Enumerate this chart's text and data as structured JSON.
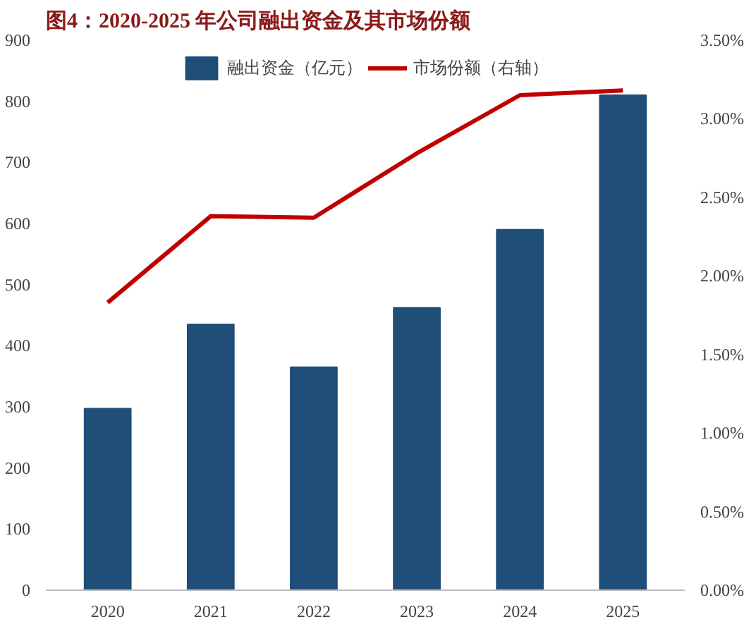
{
  "chart_data": {
    "type": "bar",
    "title": "图4：2020-2025 年公司融出资金及其市场份额",
    "categories": [
      "2020",
      "2021",
      "2022",
      "2023",
      "2024",
      "2025"
    ],
    "series": [
      {
        "name": "融出资金（亿元）",
        "color": "#1f4e79",
        "values": [
          297,
          435,
          365,
          462,
          590,
          810
        ]
      },
      {
        "name": "市场份额（右轴）",
        "type": "line",
        "axis": "y2",
        "color": "#c00000",
        "values": [
          1.83,
          2.38,
          2.37,
          2.78,
          3.15,
          3.18
        ]
      }
    ],
    "ylim": [
      0,
      900
    ],
    "yticks": [
      0,
      100,
      200,
      300,
      400,
      500,
      600,
      700,
      800,
      900
    ],
    "y2lim": [
      0,
      3.5
    ],
    "y2ticks": [
      {
        "value": 0,
        "label": "0.00%"
      },
      {
        "value": 0.5,
        "label": "0.50%"
      },
      {
        "value": 1,
        "label": "1.00%"
      },
      {
        "value": 1.5,
        "label": "1.50%"
      },
      {
        "value": 2,
        "label": "2.00%"
      },
      {
        "value": 2.5,
        "label": "2.50%"
      },
      {
        "value": 3,
        "label": "3.00%"
      },
      {
        "value": 3.5,
        "label": "3.50%"
      }
    ],
    "legend": "top",
    "grid": false
  }
}
